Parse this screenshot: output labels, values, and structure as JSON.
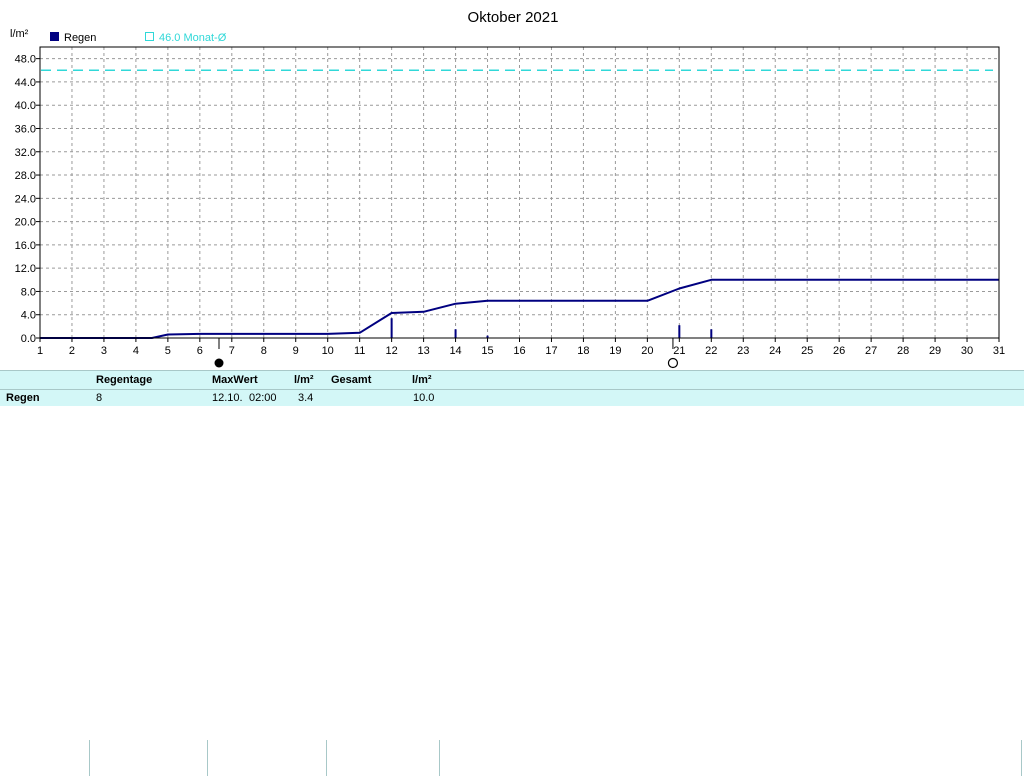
{
  "chart_data": {
    "type": "line",
    "title": "Oktober 2021",
    "ylabel": "l/m²",
    "ylim": [
      0,
      50
    ],
    "yticks": [
      "0.0",
      "4.0",
      "8.0",
      "12.0",
      "16.0",
      "20.0",
      "24.0",
      "28.0",
      "32.0",
      "36.0",
      "40.0",
      "44.0",
      "48.0"
    ],
    "xlim": [
      1,
      31
    ],
    "xticks": [
      "1",
      "2",
      "3",
      "4",
      "5",
      "6",
      "7",
      "8",
      "9",
      "10",
      "11",
      "12",
      "13",
      "14",
      "15",
      "16",
      "17",
      "18",
      "19",
      "20",
      "21",
      "22",
      "23",
      "24",
      "25",
      "26",
      "27",
      "28",
      "29",
      "30",
      "31"
    ],
    "legend": [
      {
        "label": "Regen",
        "color": "#000080",
        "marker": "filled-square"
      },
      {
        "label": "46.0 Monat-Ø",
        "color": "#30d8d8",
        "marker": "open-square"
      }
    ],
    "series": [
      {
        "name": "Regen",
        "style": "cumulative-line",
        "color": "#000080",
        "points": [
          [
            1,
            0
          ],
          [
            4.5,
            0
          ],
          [
            5,
            0.6
          ],
          [
            6,
            0.7
          ],
          [
            10,
            0.7
          ],
          [
            11,
            0.9
          ],
          [
            12,
            4.3
          ],
          [
            13,
            4.5
          ],
          [
            14,
            5.9
          ],
          [
            15,
            6.4
          ],
          [
            20,
            6.4
          ],
          [
            21,
            8.5
          ],
          [
            22,
            10.0
          ],
          [
            31,
            10.0
          ]
        ]
      },
      {
        "name": "Regen",
        "style": "daily-bars",
        "color": "#000080",
        "points": [
          [
            12.0,
            3.4
          ],
          [
            14.0,
            1.5
          ],
          [
            15.0,
            0.4
          ],
          [
            21.0,
            2.2
          ],
          [
            22.0,
            1.5
          ]
        ]
      },
      {
        "name": "46.0 Monat-Ø",
        "style": "dashed-reference",
        "color": "#30d8d8",
        "value": 46.0
      }
    ],
    "moon_phases": [
      {
        "x": 6.6,
        "phase": "new-moon"
      },
      {
        "x": 20.8,
        "phase": "full-moon"
      }
    ],
    "grid": true
  },
  "stats": {
    "row_label": "Regen",
    "regentage_label": "Regentage",
    "regentage_value": "8",
    "maxwert_label": "MaxWert",
    "maxwert_unit": "l/m²",
    "maxwert_date": "12.10.",
    "maxwert_time": "02:00",
    "maxwert_value": "3.4",
    "gesamt_label": "Gesamt",
    "gesamt_unit": "l/m²",
    "gesamt_value": "10.0"
  }
}
